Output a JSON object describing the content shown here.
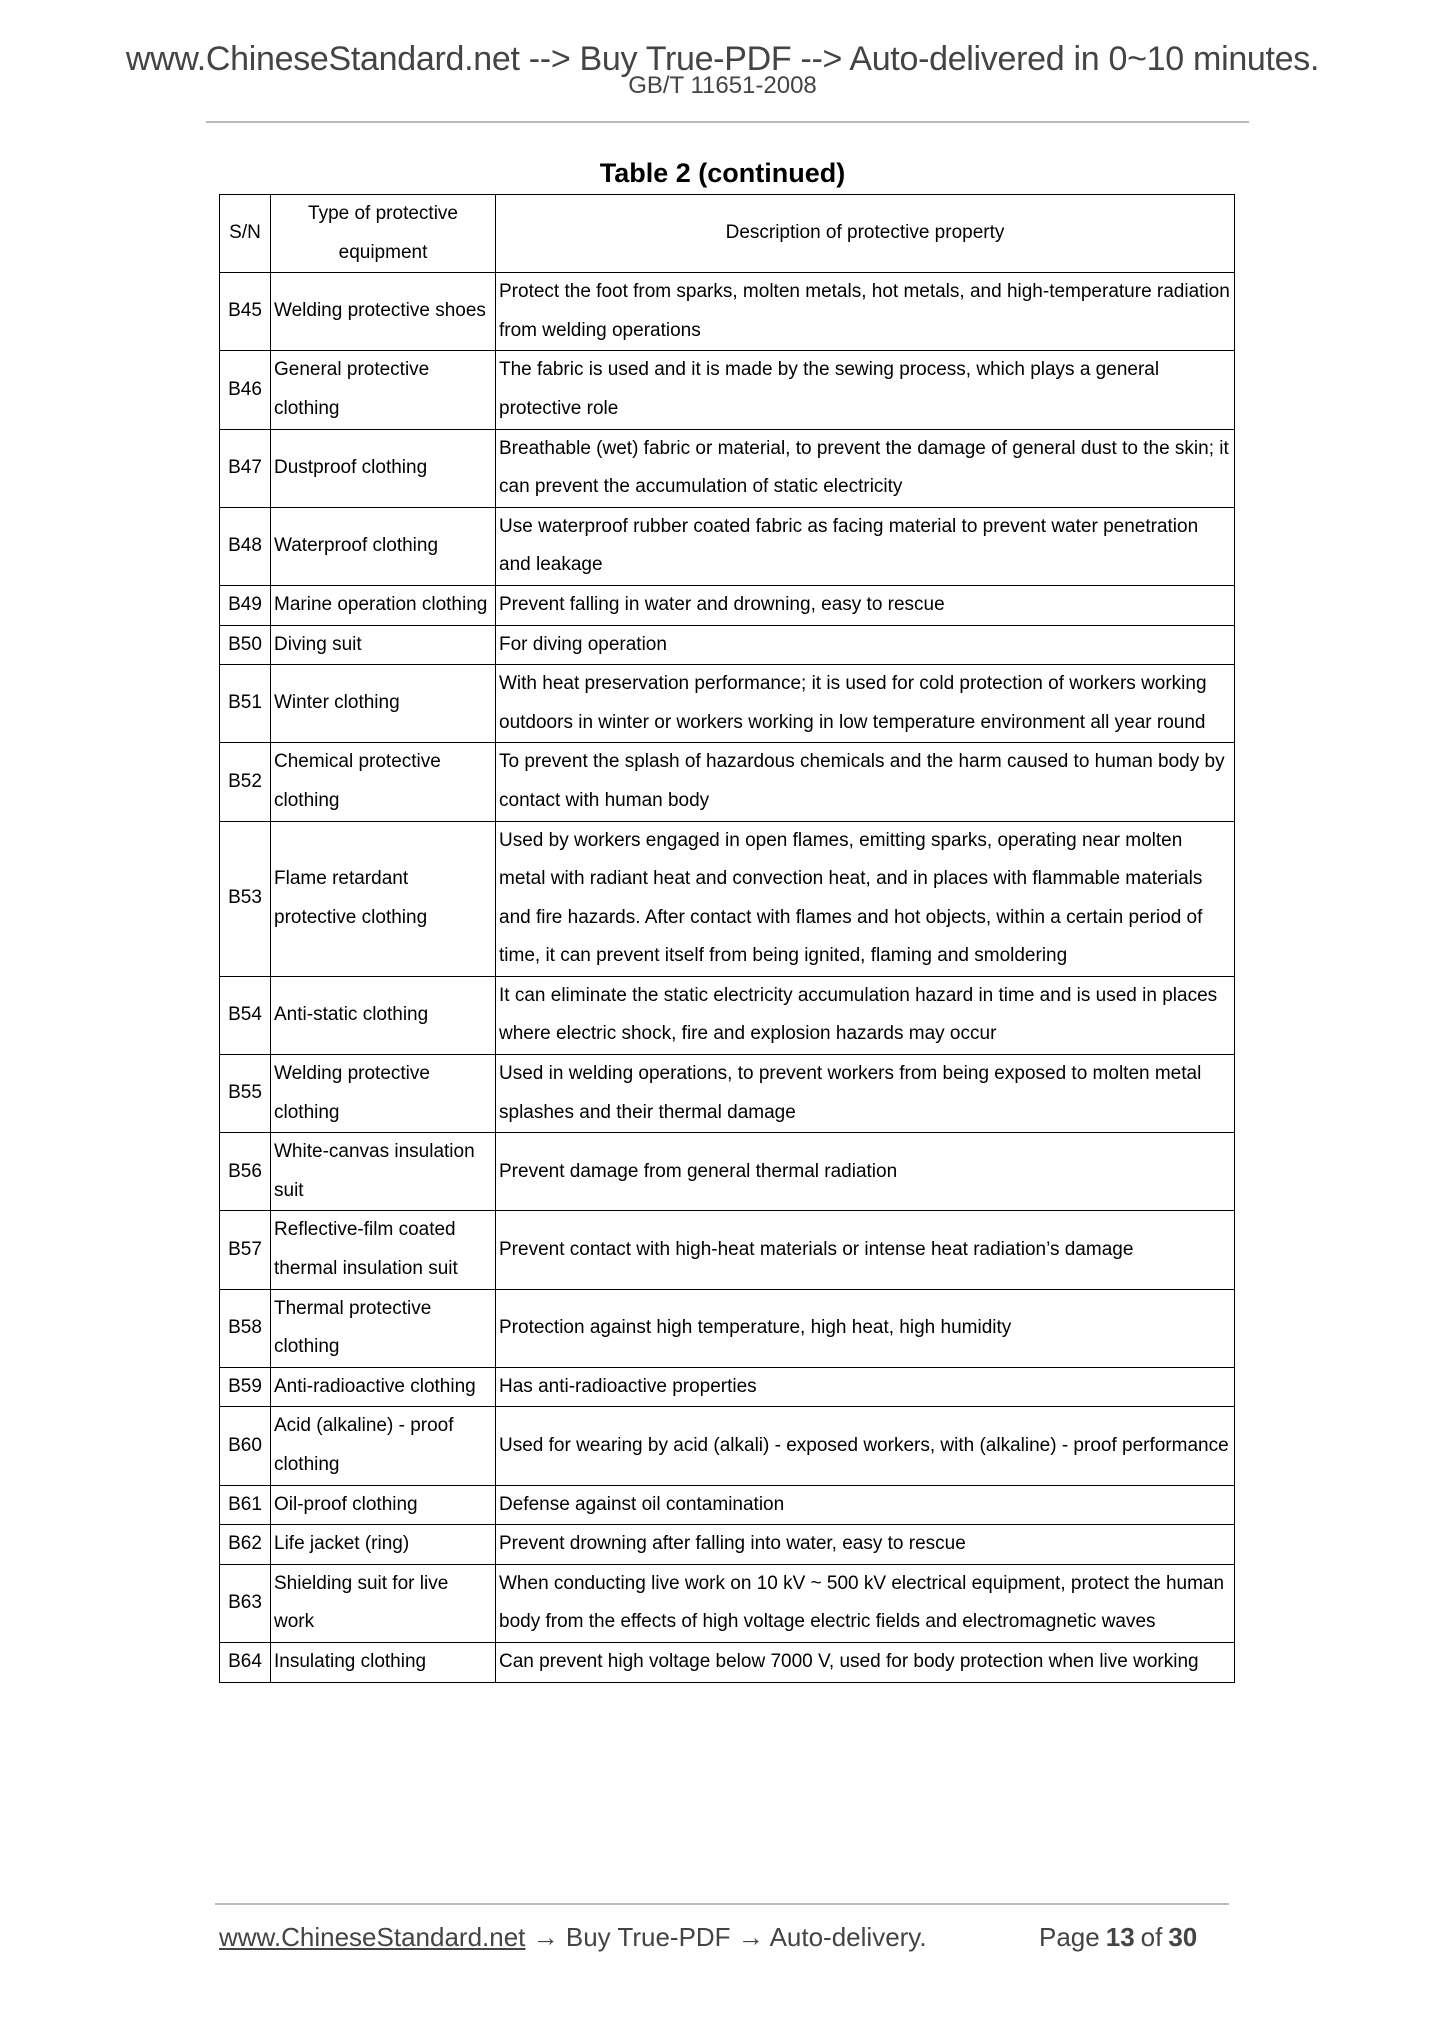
{
  "header": {
    "banner": "www.ChineseStandard.net --> Buy True-PDF --> Auto-delivered in 0~10 minutes.",
    "standard": "GB/T 11651-2008"
  },
  "table": {
    "title": "Table 2 (continued)",
    "columns": [
      "S/N",
      "Type of protective equipment",
      "Description of protective property"
    ],
    "rows": [
      {
        "sn": "B45",
        "type": "Welding protective shoes",
        "desc": "Protect the foot from sparks, molten metals, hot metals, and high-temperature radiation from welding operations"
      },
      {
        "sn": "B46",
        "type": "General protective clothing",
        "desc": "The fabric is used and it is made by the sewing process, which plays a general protective role"
      },
      {
        "sn": "B47",
        "type": "Dustproof clothing",
        "desc": "Breathable (wet) fabric or material, to prevent the damage of general dust to the skin; it can prevent the accumulation of static electricity"
      },
      {
        "sn": "B48",
        "type": "Waterproof clothing",
        "desc": "Use waterproof rubber coated fabric as facing material to prevent water penetration and leakage"
      },
      {
        "sn": "B49",
        "type": "Marine operation clothing",
        "desc": "Prevent falling in water and drowning, easy to rescue"
      },
      {
        "sn": "B50",
        "type": "Diving suit",
        "desc": "For diving operation"
      },
      {
        "sn": "B51",
        "type": "Winter clothing",
        "desc": "With heat preservation performance; it is used for cold protection of workers working outdoors in winter or workers working in low temperature environment all year round"
      },
      {
        "sn": "B52",
        "type": "Chemical protective clothing",
        "desc": "To prevent the splash of hazardous chemicals and the harm caused to human body by contact with human body"
      },
      {
        "sn": "B53",
        "type": "Flame retardant protective clothing",
        "desc": "Used by workers engaged in open flames, emitting sparks, operating near molten metal with radiant heat and convection heat, and in places with flammable materials and fire hazards. After contact with flames and hot objects, within a certain period of time, it can prevent itself from being ignited, flaming and smoldering"
      },
      {
        "sn": "B54",
        "type": "Anti-static clothing",
        "desc": "It can eliminate the static electricity accumulation hazard in time and is used in places where electric shock, fire and explosion hazards may occur"
      },
      {
        "sn": "B55",
        "type": "Welding protective clothing",
        "desc": "Used in welding operations, to prevent workers from being exposed to molten metal splashes and their thermal damage"
      },
      {
        "sn": "B56",
        "type": "White-canvas insulation suit",
        "desc": "Prevent damage from general thermal radiation"
      },
      {
        "sn": "B57",
        "type": "Reflective-film coated thermal insulation suit",
        "desc": "Prevent contact with high-heat materials or intense heat radiation’s damage"
      },
      {
        "sn": "B58",
        "type": "Thermal protective clothing",
        "desc": "Protection against high temperature, high heat, high humidity"
      },
      {
        "sn": "B59",
        "type": "Anti-radioactive clothing",
        "desc": "Has anti-radioactive properties"
      },
      {
        "sn": "B60",
        "type": "Acid (alkaline) - proof clothing",
        "desc": "Used for wearing by acid (alkali) - exposed workers, with (alkaline) - proof performance"
      },
      {
        "sn": "B61",
        "type": "Oil-proof clothing",
        "desc": "Defense against oil contamination"
      },
      {
        "sn": "B62",
        "type": "Life jacket (ring)",
        "desc": "Prevent drowning after falling into water, easy to rescue"
      },
      {
        "sn": "B63",
        "type": "Shielding suit for live work",
        "desc": "When conducting live work on 10 kV ~ 500 kV electrical equipment, protect the human body from the effects of high voltage electric fields and electromagnetic waves"
      },
      {
        "sn": "B64",
        "type": "Insulating clothing",
        "desc": "Can prevent high voltage below 7000 V, used for body protection when live working"
      }
    ]
  },
  "footer": {
    "link": "www.ChineseStandard.net",
    "text": " → Buy True-PDF → Auto-delivery.",
    "page_label": "Page",
    "page": "13",
    "of_label": "of",
    "total": "30"
  }
}
